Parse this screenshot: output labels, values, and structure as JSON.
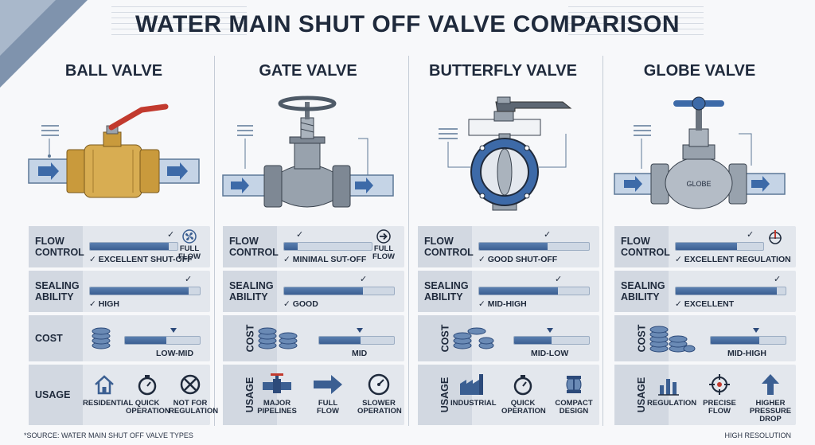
{
  "title": "WATER MAIN SHUT OFF VALVE COMPARISON",
  "colors": {
    "accent": "#3b5f92",
    "bar_bg": "#cfd8e4",
    "row_bg": "#e3e7ed",
    "label_bg": "#d2d8e1"
  },
  "valves": [
    {
      "name": "BALL VALVE",
      "flow": {
        "label": "FLOW CONTROL",
        "level": 0.9,
        "text": "✓ EXCELLENT SHUT-OFF",
        "side_icon": "fan-icon",
        "side_text": "FULL FLOW"
      },
      "sealing": {
        "label": "SEALING ABILITY",
        "level": 0.9,
        "text": "✓ HIGH"
      },
      "cost": {
        "label": "COST",
        "level": 0.55,
        "text": "LOW-MID"
      },
      "usage": {
        "label": "USAGE",
        "items": [
          {
            "icon": "house-icon",
            "text": "RESIDENTIAL"
          },
          {
            "icon": "stopwatch-icon",
            "text": "QUICK OPERATION"
          },
          {
            "icon": "no-symbol-icon",
            "text": "NOT FOR REGULATION"
          }
        ]
      }
    },
    {
      "name": "GATE VALVE",
      "flow": {
        "label": "FLOW CONTROL",
        "level": 0.15,
        "text": "✓ MINIMAL SUT-OFF",
        "side_icon": "arrow-circle-icon",
        "side_text": "FULL FLOW"
      },
      "sealing": {
        "label": "SEALING ABILITY",
        "level": 0.72,
        "text": "✓ GOOD"
      },
      "cost": {
        "label": "COST",
        "level": 0.55,
        "text": "MID"
      },
      "usage": {
        "label": "USAGE",
        "items": [
          {
            "icon": "pipeline-icon",
            "text": "MAJOR PIPELINES"
          },
          {
            "icon": "arrow-right-icon",
            "text": "FULL FLOW"
          },
          {
            "icon": "gauge-icon",
            "text": "SLOWER OPERATION"
          }
        ]
      }
    },
    {
      "name": "BUTTERFLY VALVE",
      "flow": {
        "label": "FLOW CONTROL",
        "level": 0.62,
        "text": "✓ GOOD SHUT-OFF"
      },
      "sealing": {
        "label": "SEALING ABILITY",
        "level": 0.72,
        "text": "✓ MID-HIGH"
      },
      "cost": {
        "label": "COST",
        "level": 0.5,
        "text": "MID-LOW"
      },
      "usage": {
        "label": "USAGE",
        "items": [
          {
            "icon": "factory-icon",
            "text": "INDUSTRIAL"
          },
          {
            "icon": "stopwatch-icon",
            "text": "QUICK OPERATION"
          },
          {
            "icon": "compact-valve-icon",
            "text": "COMPACT DESIGN"
          }
        ]
      }
    },
    {
      "name": "GLOBE VALVE",
      "flow": {
        "label": "FLOW CONTROL",
        "level": 0.7,
        "text": "✓ EXCELLENT REGULATION",
        "side_icon": "crosshair-gauge-icon",
        "side_text": ""
      },
      "sealing": {
        "label": "SEALING ABILITY",
        "level": 0.92,
        "text": "✓ EXCELLENT"
      },
      "cost": {
        "label": "COST",
        "level": 0.65,
        "text": "MID-HIGH"
      },
      "usage": {
        "label": "USAGE",
        "items": [
          {
            "icon": "bar-chart-icon",
            "text": "REGULATION"
          },
          {
            "icon": "crosshair-icon",
            "text": "PRECISE FLOW"
          },
          {
            "icon": "pressure-drop-icon",
            "text": "HIGHER PRESSURE DROP"
          }
        ]
      }
    }
  ],
  "globe_body_label": "GLOBE",
  "footer_left": "*SOURCE: WATER MAIN SHUT OFF VALVE TYPES",
  "footer_right": "HIGH RESOLUTION"
}
